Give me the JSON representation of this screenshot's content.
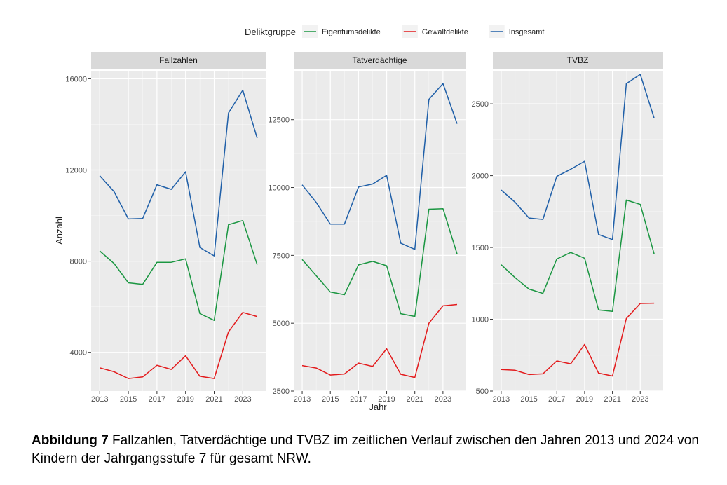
{
  "chart_data": {
    "type": "line",
    "legend": {
      "title": "Deliktgruppe",
      "position": "top",
      "entries": [
        {
          "name": "Eigentumsdelikte",
          "color": "#1a9641"
        },
        {
          "name": "Gewaltdelikte",
          "color": "#e31a1c"
        },
        {
          "name": "Insgesamt",
          "color": "#1f5fa8"
        }
      ]
    },
    "xlabel": "Jahr",
    "ylabel": "Anzahl",
    "x": [
      2013,
      2014,
      2015,
      2016,
      2017,
      2018,
      2019,
      2020,
      2021,
      2022,
      2023,
      2024
    ],
    "x_ticks": [
      2013,
      2015,
      2017,
      2019,
      2021,
      2023
    ],
    "x_tick_labels": [
      "2013",
      "2015",
      "2017",
      "2019",
      "2021",
      "2023"
    ],
    "panels": [
      {
        "title": "Fallzahlen",
        "ylim": [
          2300,
          16350
        ],
        "y_ticks": [
          4000,
          8000,
          12000,
          16000
        ],
        "y_tick_labels": [
          "4000",
          "8000",
          "12000",
          "16000"
        ],
        "series": [
          {
            "name": "Eigentumsdelikte",
            "values": [
              8450,
              7900,
              7050,
              6980,
              7950,
              7950,
              8100,
              5700,
              5400,
              9600,
              9780,
              7850
            ]
          },
          {
            "name": "Gewaltdelikte",
            "values": [
              3320,
              3150,
              2850,
              2920,
              3430,
              3250,
              3850,
              2950,
              2850,
              4900,
              5750,
              5570
            ]
          },
          {
            "name": "Insgesamt",
            "values": [
              11750,
              11050,
              9850,
              9870,
              11350,
              11150,
              11920,
              8600,
              8230,
              14500,
              15500,
              13400
            ]
          }
        ]
      },
      {
        "title": "Tatverdächtige",
        "ylim": [
          2500,
          14300
        ],
        "y_ticks": [
          2500,
          5000,
          7500,
          10000,
          12500
        ],
        "y_tick_labels": [
          "2500",
          "5000",
          "7500",
          "10000",
          "12500"
        ],
        "series": [
          {
            "name": "Eigentumsdelikte",
            "values": [
              7350,
              6750,
              6150,
              6050,
              7150,
              7280,
              7120,
              5350,
              5250,
              9200,
              9220,
              7550
            ]
          },
          {
            "name": "Gewaltdelikte",
            "values": [
              3440,
              3350,
              3090,
              3130,
              3530,
              3410,
              4060,
              3120,
              3000,
              5000,
              5640,
              5690
            ]
          },
          {
            "name": "Insgesamt",
            "values": [
              10100,
              9450,
              8650,
              8650,
              10020,
              10130,
              10450,
              7950,
              7720,
              13250,
              13830,
              12350
            ]
          }
        ]
      },
      {
        "title": "TVBZ",
        "ylim": [
          500,
          2730
        ],
        "y_ticks": [
          500,
          1000,
          1500,
          2000,
          2500
        ],
        "y_tick_labels": [
          "500",
          "1000",
          "1500",
          "2000",
          "2500"
        ],
        "series": [
          {
            "name": "Eigentumsdelikte",
            "values": [
              1380,
              1290,
              1210,
              1180,
              1420,
              1465,
              1425,
              1065,
              1055,
              1830,
              1800,
              1455
            ]
          },
          {
            "name": "Gewaltdelikte",
            "values": [
              650,
              645,
              615,
              620,
              710,
              690,
              825,
              625,
              605,
              1005,
              1110,
              1112
            ]
          },
          {
            "name": "Insgesamt",
            "values": [
              1900,
              1815,
              1705,
              1695,
              1995,
              2045,
              2100,
              1590,
              1555,
              2640,
              2705,
              2400
            ]
          }
        ]
      }
    ]
  },
  "caption": {
    "label": "Abbildung 7",
    "text": " Fallzahlen, Tatverdächtige und TVBZ im zeitlichen Verlauf zwischen den Jahren 2013 und 2024 von Kindern der Jahrgangsstufe 7 für gesamt NRW."
  }
}
